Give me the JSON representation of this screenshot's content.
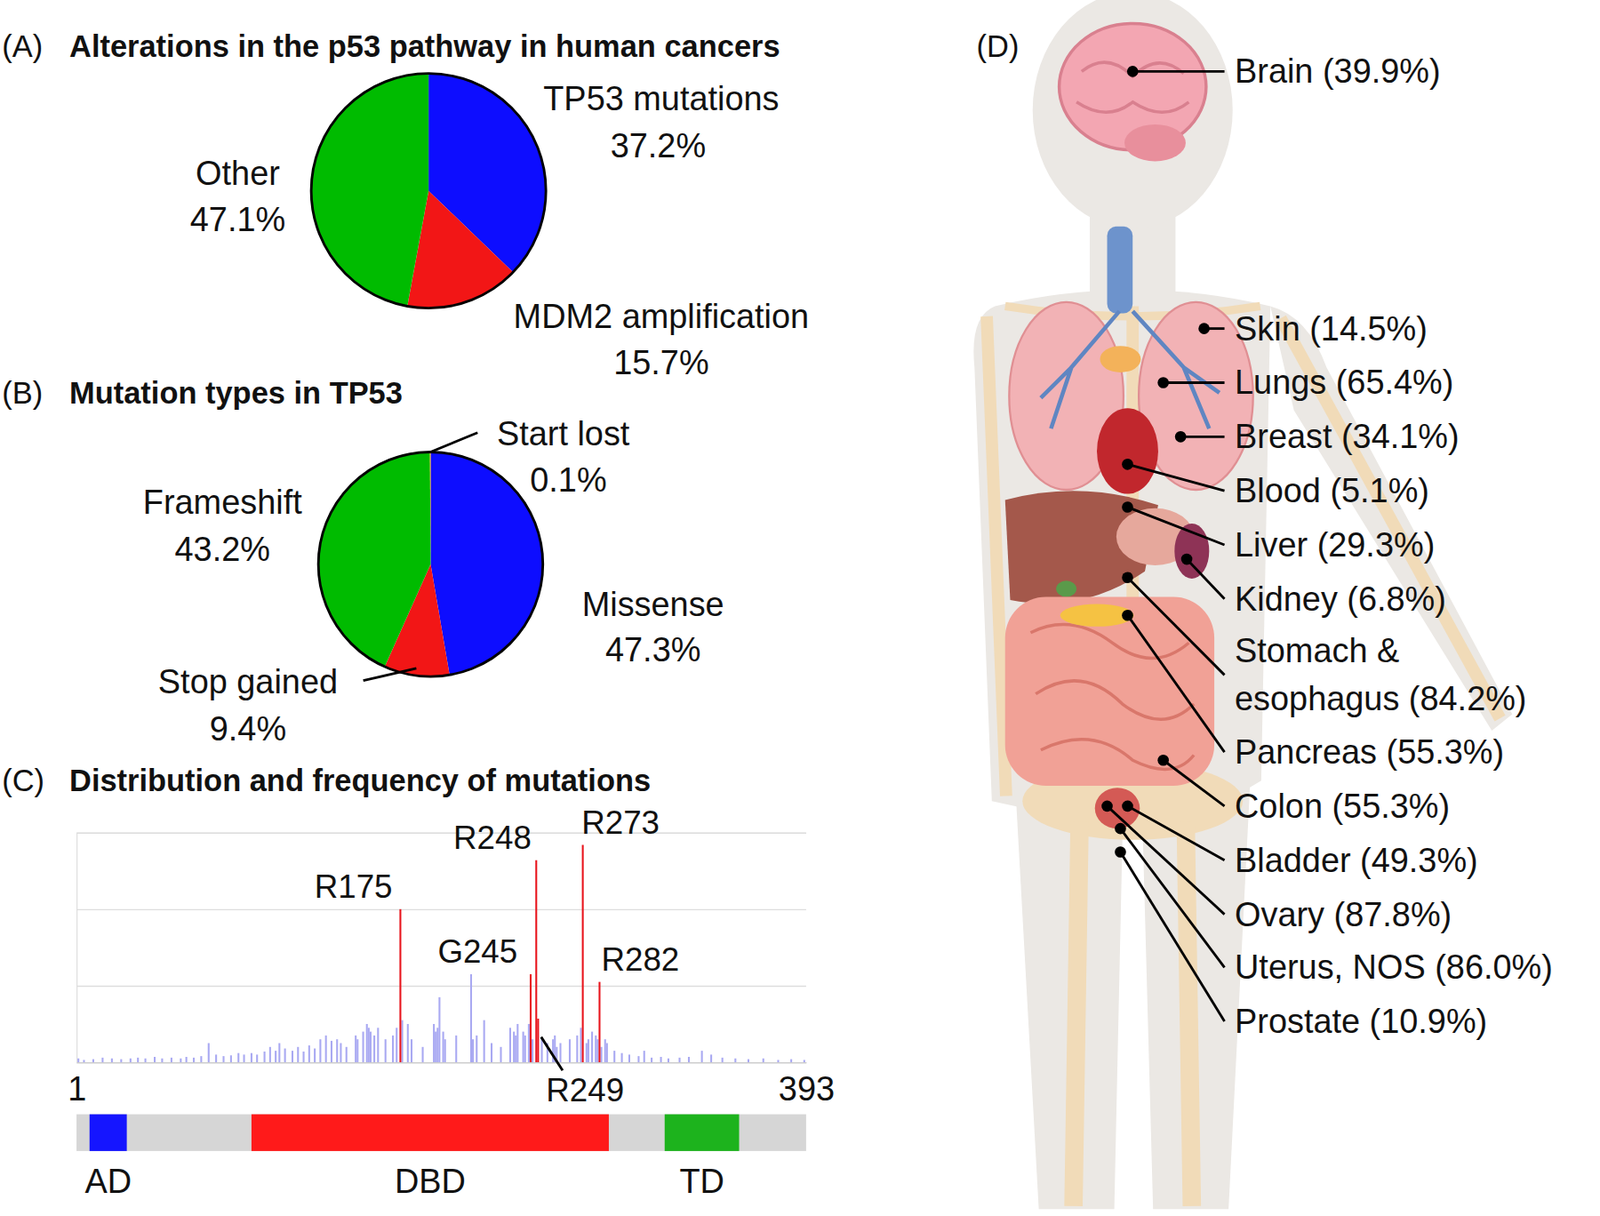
{
  "chart_data": [
    {
      "type": "pie",
      "panel": "(A)",
      "title": "Alterations in the p53 pathway in human cancers",
      "labels": [
        "TP53 mutations",
        "MDM2 amplification",
        "Other"
      ],
      "values": [
        37.2,
        15.7,
        47.1
      ],
      "value_labels": [
        "37.2%",
        "15.7%",
        "47.1%"
      ],
      "colors": [
        "#0d0dff",
        "#f21616",
        "#00bb00"
      ],
      "data_labels": true
    },
    {
      "type": "pie",
      "panel": "(B)",
      "title": "Mutation types in TP53",
      "labels": [
        "Missense",
        "Stop gained",
        "Frameshift",
        "Start lost"
      ],
      "values": [
        47.3,
        9.4,
        43.2,
        0.1
      ],
      "value_labels": [
        "47.3%",
        "9.4%",
        "43.2%",
        "0.1%"
      ],
      "colors": [
        "#0d0dff",
        "#f21616",
        "#00bb00",
        "#ff9900"
      ],
      "data_labels": true
    },
    {
      "type": "bar",
      "panel": "(C)",
      "title": "Distribution and frequency of mutations",
      "x": [
        2,
        5,
        10,
        15,
        20,
        25,
        30,
        34,
        38,
        43,
        47,
        52,
        57,
        60,
        64,
        68,
        72,
        76,
        80,
        84,
        88,
        91,
        95,
        98,
        102,
        105,
        108,
        110,
        113,
        117,
        120,
        123,
        126,
        129,
        132,
        135,
        138,
        141,
        143,
        146,
        151,
        152,
        155,
        157,
        158,
        159,
        161,
        163,
        167,
        171,
        173,
        175,
        176,
        179,
        181,
        187,
        193,
        194,
        195,
        196,
        198,
        199,
        205,
        213,
        214,
        216,
        220,
        224,
        229,
        234,
        236,
        237,
        238,
        241,
        242,
        244,
        245,
        246,
        248,
        249,
        251,
        254,
        257,
        258,
        259,
        261,
        266,
        270,
        272,
        273,
        275,
        276,
        278,
        280,
        281,
        282,
        283,
        285,
        286,
        290,
        294,
        298,
        303,
        306,
        310,
        315,
        319,
        325,
        330,
        337,
        342,
        348,
        355,
        362,
        370,
        378,
        385,
        392
      ],
      "values": [
        0.05,
        0.03,
        0.04,
        0.06,
        0.05,
        0.04,
        0.05,
        0.06,
        0.05,
        0.07,
        0.05,
        0.06,
        0.05,
        0.07,
        0.06,
        0.08,
        0.25,
        0.1,
        0.08,
        0.09,
        0.12,
        0.1,
        0.12,
        0.1,
        0.14,
        0.2,
        0.15,
        0.25,
        0.18,
        0.15,
        0.2,
        0.14,
        0.22,
        0.18,
        0.3,
        0.35,
        0.28,
        0.3,
        0.25,
        0.2,
        0.35,
        0.3,
        0.4,
        0.5,
        0.45,
        0.4,
        0.35,
        0.45,
        0.3,
        0.35,
        0.45,
        2.0,
        0.55,
        0.5,
        0.3,
        0.2,
        0.5,
        0.4,
        0.45,
        0.85,
        0.4,
        0.3,
        0.35,
        1.15,
        0.3,
        0.35,
        0.55,
        0.25,
        0.2,
        0.45,
        0.4,
        0.35,
        0.5,
        0.4,
        0.35,
        0.5,
        1.15,
        0.3,
        2.64,
        0.57,
        0.3,
        0.25,
        0.3,
        0.35,
        0.2,
        0.25,
        0.3,
        0.35,
        0.45,
        2.84,
        0.25,
        0.3,
        0.4,
        0.35,
        0.3,
        1.05,
        0.2,
        0.3,
        0.25,
        0.15,
        0.12,
        0.1,
        0.08,
        0.15,
        0.06,
        0.07,
        0.05,
        0.06,
        0.07,
        0.15,
        0.1,
        0.06,
        0.05,
        0.04,
        0.05,
        0.03,
        0.04,
        0.03
      ],
      "colors": [
        "#a9a9f2",
        "#a9a9f2",
        "#a9a9f2",
        "#a9a9f2",
        "#a9a9f2",
        "#a9a9f2",
        "#a9a9f2",
        "#a9a9f2",
        "#a9a9f2",
        "#a9a9f2",
        "#a9a9f2",
        "#a9a9f2",
        "#a9a9f2",
        "#a9a9f2",
        "#a9a9f2",
        "#a9a9f2",
        "#a9a9f2",
        "#a9a9f2",
        "#a9a9f2",
        "#a9a9f2",
        "#a9a9f2",
        "#a9a9f2",
        "#a9a9f2",
        "#a9a9f2",
        "#a9a9f2",
        "#a9a9f2",
        "#a9a9f2",
        "#a9a9f2",
        "#a9a9f2",
        "#a9a9f2",
        "#a9a9f2",
        "#a9a9f2",
        "#a9a9f2",
        "#a9a9f2",
        "#a9a9f2",
        "#a9a9f2",
        "#a9a9f2",
        "#a9a9f2",
        "#a9a9f2",
        "#a9a9f2",
        "#a9a9f2",
        "#a9a9f2",
        "#a9a9f2",
        "#a9a9f2",
        "#a9a9f2",
        "#a9a9f2",
        "#a9a9f2",
        "#a9a9f2",
        "#a9a9f2",
        "#a9a9f2",
        "#a9a9f2",
        "#e8141c",
        "#a9a9f2",
        "#a9a9f2",
        "#a9a9f2",
        "#a9a9f2",
        "#a9a9f2",
        "#a9a9f2",
        "#a9a9f2",
        "#a9a9f2",
        "#a9a9f2",
        "#a9a9f2",
        "#a9a9f2",
        "#a9a9f2",
        "#a9a9f2",
        "#a9a9f2",
        "#a9a9f2",
        "#a9a9f2",
        "#a9a9f2",
        "#a9a9f2",
        "#a9a9f2",
        "#a9a9f2",
        "#a9a9f2",
        "#a9a9f2",
        "#a9a9f2",
        "#a9a9f2",
        "#e8141c",
        "#a9a9f2",
        "#e8141c",
        "#e8141c",
        "#a9a9f2",
        "#a9a9f2",
        "#a9a9f2",
        "#a9a9f2",
        "#a9a9f2",
        "#a9a9f2",
        "#a9a9f2",
        "#a9a9f2",
        "#a9a9f2",
        "#e8141c",
        "#a9a9f2",
        "#a9a9f2",
        "#a9a9f2",
        "#a9a9f2",
        "#a9a9f2",
        "#e8141c",
        "#a9a9f2",
        "#a9a9f2",
        "#a9a9f2",
        "#a9a9f2",
        "#a9a9f2",
        "#a9a9f2",
        "#a9a9f2",
        "#a9a9f2",
        "#a9a9f2",
        "#a9a9f2",
        "#a9a9f2",
        "#a9a9f2",
        "#a9a9f2",
        "#a9a9f2",
        "#a9a9f2",
        "#a9a9f2",
        "#a9a9f2",
        "#a9a9f2",
        "#a9a9f2",
        "#a9a9f2",
        "#a9a9f2",
        "#a9a9f2"
      ],
      "xlim": [
        1,
        393
      ],
      "xticks": [
        1,
        393
      ],
      "ylim": [
        0,
        3
      ],
      "yticks": [
        0,
        1,
        2,
        3
      ],
      "grid": true,
      "tick_labels": "x",
      "annotations": [
        {
          "text": "R175",
          "x": 175
        },
        {
          "text": "G245",
          "x": 245
        },
        {
          "text": "R248",
          "x": 248
        },
        {
          "text": "R249",
          "x": 249
        },
        {
          "text": "R273",
          "x": 273
        },
        {
          "text": "R282",
          "x": 282
        }
      ],
      "domains": [
        {
          "label": "AD",
          "start": 8,
          "end": 28,
          "color": "#1515ff"
        },
        {
          "label": "DBD",
          "start": 95,
          "end": 287,
          "color": "#ff1a1a"
        },
        {
          "label": "TD",
          "start": 317,
          "end": 357,
          "color": "#1db31d"
        }
      ]
    }
  ],
  "body_map": {
    "panel": "(D)",
    "organs": [
      {
        "lines": [
          "Brain (39.9%)"
        ]
      },
      {
        "lines": [
          "Skin (14.5%)"
        ]
      },
      {
        "lines": [
          "Lungs (65.4%)"
        ]
      },
      {
        "lines": [
          "Breast (34.1%)"
        ]
      },
      {
        "lines": [
          "Blood (5.1%)"
        ]
      },
      {
        "lines": [
          "Liver (29.3%)"
        ]
      },
      {
        "lines": [
          "Kidney (6.8%)"
        ]
      },
      {
        "lines": [
          "Stomach &",
          "esophagus (84.2%)"
        ]
      },
      {
        "lines": [
          "Pancreas (55.3%)"
        ]
      },
      {
        "lines": [
          "Colon (55.3%)"
        ]
      },
      {
        "lines": [
          "Bladder (49.3%)"
        ]
      },
      {
        "lines": [
          "Ovary (87.8%)"
        ]
      },
      {
        "lines": [
          "Uterus, NOS (86.0%)"
        ]
      },
      {
        "lines": [
          "Prostate (10.9%)"
        ]
      }
    ]
  }
}
